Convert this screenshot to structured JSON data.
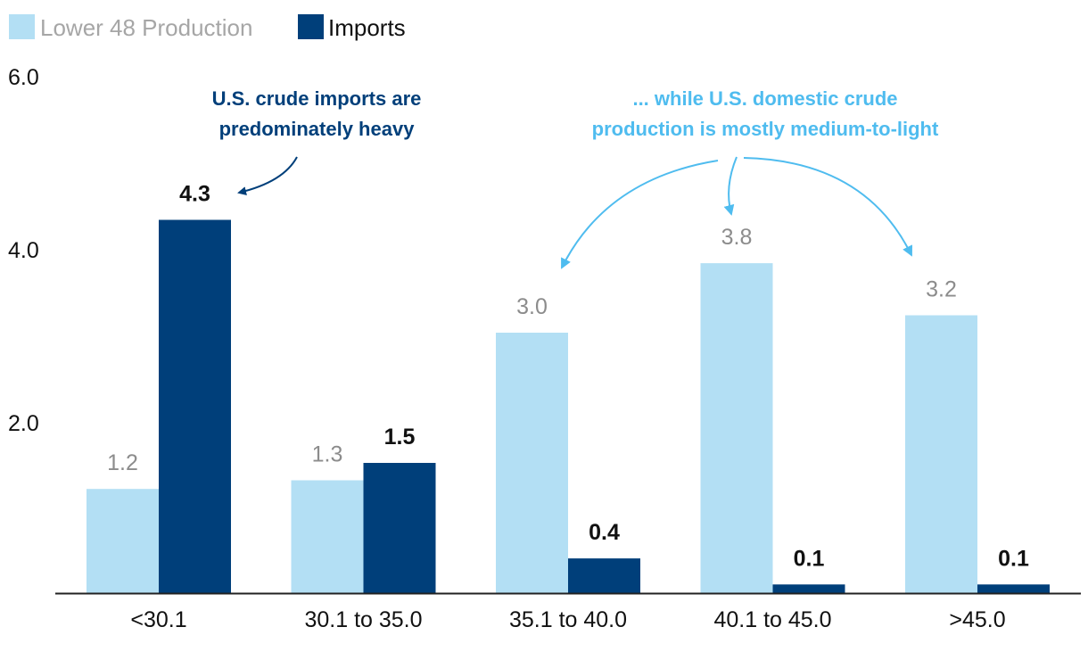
{
  "chart_data": {
    "type": "bar",
    "title": "",
    "xlabel": "",
    "ylabel": "",
    "ylim": [
      0,
      6
    ],
    "yticks": [
      "2.0",
      "4.0",
      "6.0"
    ],
    "grid": false,
    "legend_position": "top-left",
    "categories": [
      "<30.1",
      "30.1 to 35.0",
      "35.1 to 40.0",
      "40.1 to 45.0",
      ">45.0"
    ],
    "series": [
      {
        "name": "Lower 48 Production",
        "color": "#b3dff4",
        "label_color": "#8c8c8c",
        "values": [
          1.2,
          1.3,
          3.0,
          3.8,
          3.2
        ],
        "value_labels": [
          "1.2",
          "1.3",
          "3.0",
          "3.8",
          "3.2"
        ]
      },
      {
        "name": "Imports",
        "color": "#003f7a",
        "label_color": "#111111",
        "values": [
          4.3,
          1.5,
          0.4,
          0.1,
          0.1
        ],
        "value_labels": [
          "4.3",
          "1.5",
          "0.4",
          "0.1",
          "0.1"
        ]
      }
    ],
    "annotations": [
      {
        "lines": [
          "U.S. crude imports are",
          "predominately heavy"
        ],
        "color": "#003f7a",
        "points_to": "Imports <30.1"
      },
      {
        "lines": [
          "... while U.S. domestic crude",
          "production is mostly medium-to-light"
        ],
        "color": "#4fbcef",
        "points_to": "Lower 48 Production 35.1 to 40.0, 40.1 to 45.0, >45.0"
      }
    ]
  }
}
